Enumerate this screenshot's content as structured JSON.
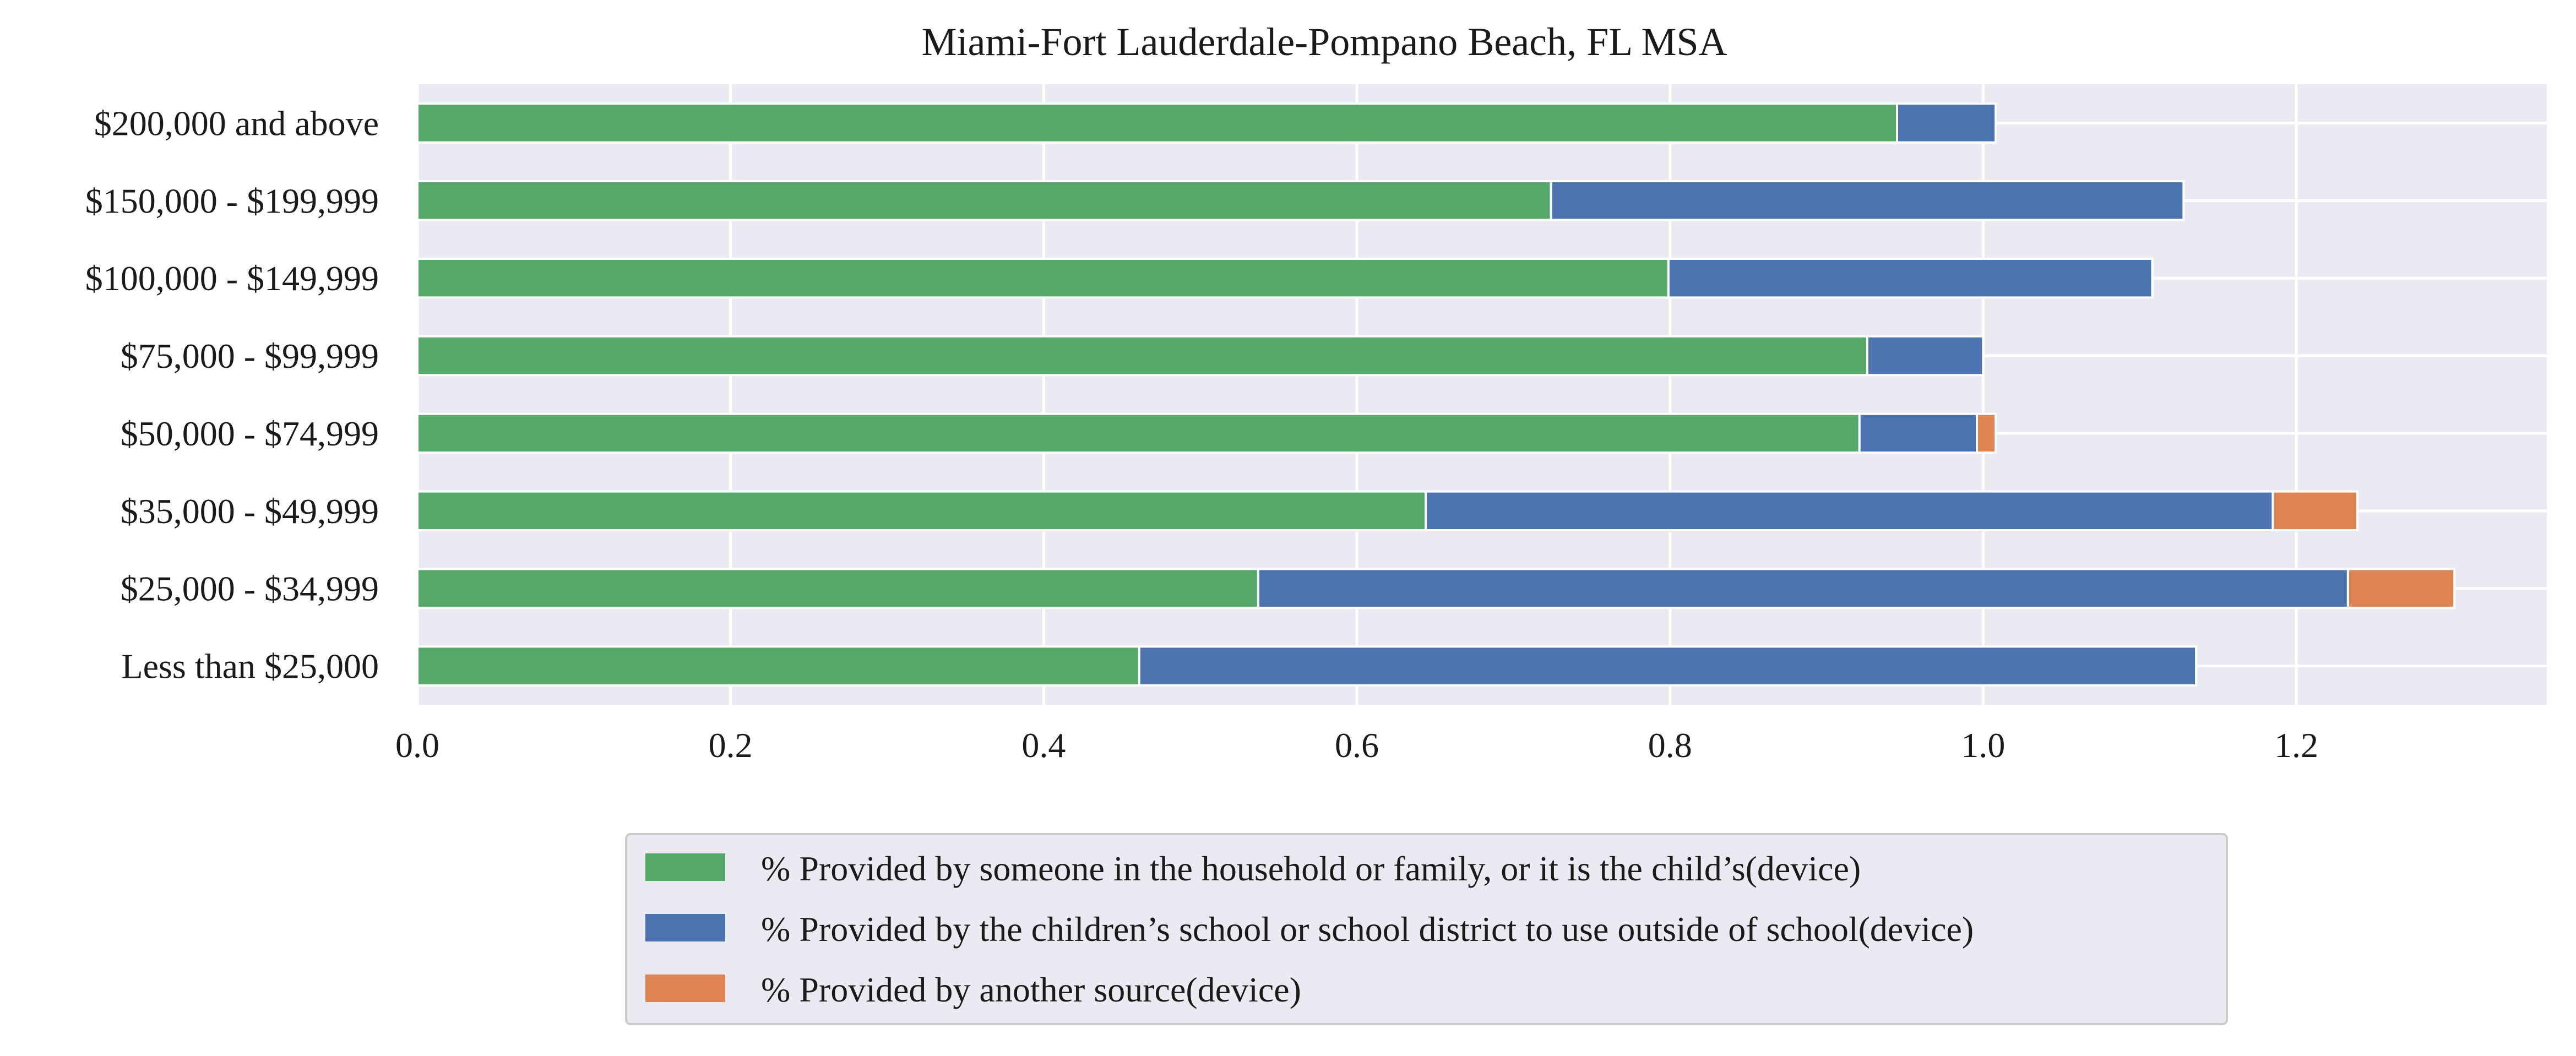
{
  "chart_data": {
    "type": "bar",
    "orientation": "horizontal",
    "stacked": true,
    "title": "Miami-Fort Lauderdale-Pompano Beach, FL MSA",
    "xlabel": "",
    "ylabel": "",
    "xlim": [
      0.0,
      1.36
    ],
    "x_ticks": [
      "0.0",
      "0.2",
      "0.4",
      "0.6",
      "0.8",
      "1.0",
      "1.2"
    ],
    "grid": true,
    "legend_position": "bottom-center",
    "categories": [
      "$200,000 and above",
      "$150,000 - $199,999",
      "$100,000 - $149,999",
      "$75,000 - $99,999",
      "$50,000 - $74,999",
      "$35,000 - $49,999",
      "$25,000 - $34,999",
      "Less than $25,000"
    ],
    "series": [
      {
        "name": "% Provided by someone in the household or family, or it is the child’s(device)",
        "color": "#55a868",
        "values": [
          0.945,
          0.724,
          0.799,
          0.926,
          0.921,
          0.644,
          0.537,
          0.461
        ]
      },
      {
        "name": "% Provided by the children’s school or school district to use outside of school(device)",
        "color": "#4c72b0",
        "values": [
          0.063,
          0.404,
          0.309,
          0.074,
          0.075,
          0.541,
          0.696,
          0.675
        ]
      },
      {
        "name": "% Provided by another source(device)",
        "color": "#dd8452",
        "values": [
          0.0,
          0.0,
          0.0,
          0.0,
          0.012,
          0.054,
          0.068,
          0.0
        ]
      }
    ]
  }
}
